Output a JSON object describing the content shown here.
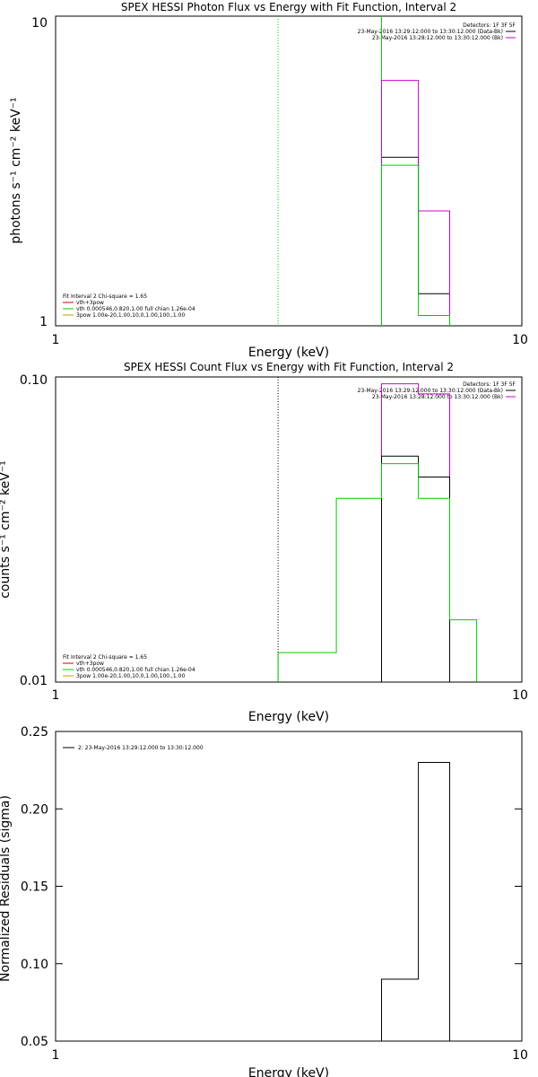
{
  "chart_data": [
    {
      "type": "line",
      "title": "SPEX HESSI Photon Flux vs Energy with Fit Function, Interval 2",
      "xlabel": "Energy (keV)",
      "ylabel": "photons s⁻¹ cm⁻² keV⁻¹",
      "x_scale": "log",
      "y_scale": "log",
      "xlim": [
        1,
        10
      ],
      "ylim": [
        1,
        10
      ],
      "x_ticks": [
        "1",
        "10"
      ],
      "y_ticks": [
        "1",
        "10"
      ],
      "vlines": [
        {
          "x": 3.0,
          "color": "#00cc00",
          "style": "dotted"
        },
        {
          "x": 5.0,
          "color": "#00cc00",
          "style": "solid"
        }
      ],
      "legend_top": [
        {
          "text": "Detectors: 1F 3F 5F",
          "color": "#000000"
        },
        {
          "text": "23-May-2016 13:29:12.000 to 13:30:12.000 (Data-Bk)",
          "color": "#000000"
        },
        {
          "text": "23-May-2016 13:28:12.000 to 13:30:12.000 (Bk)",
          "color": "#cc00cc"
        }
      ],
      "legend_bottom": [
        {
          "text": "Fit Interval 2   Chi-square = 1.65",
          "color": "#000000"
        },
        {
          "text": "vth+3pow",
          "color": "#cc0000"
        },
        {
          "text": "vth 0.000546,0.820,1.00  full chian 1.26e-04",
          "color": "#00cc00"
        },
        {
          "text": "3pow 1.00e-20,1.00,10.0,1.00,100.,1.00",
          "color": "#cc9900"
        }
      ],
      "series": [
        {
          "color": "#000000",
          "bins": [
            [
              5.0,
              6.0,
              3.5
            ],
            [
              6.0,
              7.0,
              1.27
            ]
          ]
        },
        {
          "color": "#cc00cc",
          "bins": [
            [
              5.0,
              6.0,
              6.2
            ],
            [
              6.0,
              7.0,
              2.35
            ]
          ]
        },
        {
          "color": "#00cc00",
          "bins": [
            [
              5.0,
              6.0,
              3.3
            ],
            [
              6.0,
              7.0,
              1.08
            ]
          ]
        }
      ]
    },
    {
      "type": "line",
      "title": "SPEX HESSI Count Flux vs Energy with Fit Function, Interval 2",
      "xlabel": "Energy (keV)",
      "ylabel": "counts s⁻¹ cm⁻² keV⁻¹",
      "x_scale": "log",
      "y_scale": "log",
      "xlim": [
        1,
        10
      ],
      "ylim": [
        0.01,
        0.1
      ],
      "x_ticks": [
        "1",
        "10"
      ],
      "y_ticks": [
        "0.01",
        "0.10"
      ],
      "vlines": [
        {
          "x": 3.0,
          "color": "#000000",
          "style": "dotted"
        }
      ],
      "legend_top": [
        {
          "text": "Detectors: 1F 3F 5F",
          "color": "#000000"
        },
        {
          "text": "23-May-2016 13:29:12.000 to 13:30:12.000 (Data-Bk)",
          "color": "#000000"
        },
        {
          "text": "23-May-2016 13:28:12.000 to 13:30:12.000 (Bk)",
          "color": "#cc00cc"
        }
      ],
      "legend_bottom": [
        {
          "text": "Fit Interval 2   Chi-square = 1.65",
          "color": "#000000"
        },
        {
          "text": "vth+3pow",
          "color": "#cc0000"
        },
        {
          "text": "vth 0.000546,0.820,1.00  full chian 1.26e-04",
          "color": "#00cc00"
        },
        {
          "text": "3pow 1.00e-20,1.00,10.0,1.00,100.,1.00",
          "color": "#cc9900"
        }
      ],
      "series": [
        {
          "color": "#cc00cc",
          "bins": [
            [
              5.0,
              6.0,
              0.095
            ],
            [
              6.0,
              7.0,
              0.088
            ]
          ]
        },
        {
          "color": "#000000",
          "bins": [
            [
              5.0,
              6.0,
              0.055
            ],
            [
              6.0,
              7.0,
              0.047
            ]
          ]
        },
        {
          "color": "#00cc00",
          "bins": [
            [
              3.0,
              4.0,
              0.0125
            ],
            [
              4.0,
              5.0,
              0.04
            ],
            [
              5.0,
              6.0,
              0.052
            ],
            [
              6.0,
              7.0,
              0.04
            ],
            [
              7.0,
              8.0,
              0.016
            ]
          ]
        }
      ]
    },
    {
      "type": "line",
      "title": "",
      "xlabel": "Energy (keV)",
      "ylabel": "Normalized Residuals (sigma)",
      "x_scale": "log",
      "y_scale": "linear",
      "xlim": [
        1,
        10
      ],
      "ylim": [
        0.05,
        0.25
      ],
      "x_ticks": [
        "1",
        "10"
      ],
      "y_ticks": [
        "0.05",
        "0.10",
        "0.15",
        "0.20",
        "0.25"
      ],
      "legend_top": [
        {
          "text": "2: 23-May-2016 13:29:12.000 to 13:30:12.000",
          "color": "#000000"
        }
      ],
      "series": [
        {
          "color": "#000000",
          "bins": [
            [
              5.0,
              6.0,
              0.09
            ],
            [
              6.0,
              7.0,
              0.23
            ]
          ]
        }
      ]
    }
  ]
}
